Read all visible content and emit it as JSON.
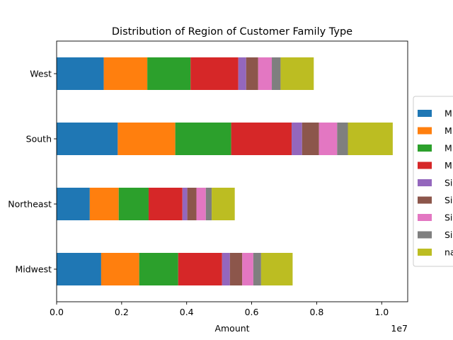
{
  "chart_data": {
    "type": "bar",
    "orientation": "horizontal",
    "stacked": true,
    "title": "Distribution of Region of Customer Family Type",
    "xlabel": "Amount",
    "ylabel": "",
    "x_offset_label": "1e7",
    "xlim": [
      0,
      10800000
    ],
    "x_ticks": [
      0,
      2000000,
      4000000,
      6000000,
      8000000,
      10000000
    ],
    "x_tick_labels": [
      "0.0",
      "0.2",
      "0.4",
      "0.6",
      "0.8",
      "1.0"
    ],
    "categories": [
      "Midwest",
      "Northeast",
      "South",
      "West"
    ],
    "grid": false,
    "legend_position": "center right, outside plot (clipped)",
    "series": [
      {
        "name": "M",
        "color": "#1f77b4",
        "values": [
          1370000,
          1020000,
          1880000,
          1450000
        ]
      },
      {
        "name": "M",
        "color": "#ff7f0e",
        "values": [
          1170000,
          890000,
          1770000,
          1340000
        ]
      },
      {
        "name": "M",
        "color": "#2ca02c",
        "values": [
          1200000,
          920000,
          1720000,
          1330000
        ]
      },
      {
        "name": "M",
        "color": "#d62728",
        "values": [
          1350000,
          1040000,
          1860000,
          1470000
        ]
      },
      {
        "name": "Si",
        "color": "#9467bd",
        "values": [
          240000,
          150000,
          320000,
          240000
        ]
      },
      {
        "name": "Si",
        "color": "#8c564b",
        "values": [
          380000,
          280000,
          520000,
          370000
        ]
      },
      {
        "name": "Si",
        "color": "#e377c2",
        "values": [
          340000,
          290000,
          560000,
          420000
        ]
      },
      {
        "name": "Si",
        "color": "#7f7f7f",
        "values": [
          240000,
          180000,
          330000,
          270000
        ]
      },
      {
        "name": "na",
        "color": "#bcbd22",
        "values": [
          970000,
          710000,
          1380000,
          1020000
        ]
      }
    ]
  }
}
